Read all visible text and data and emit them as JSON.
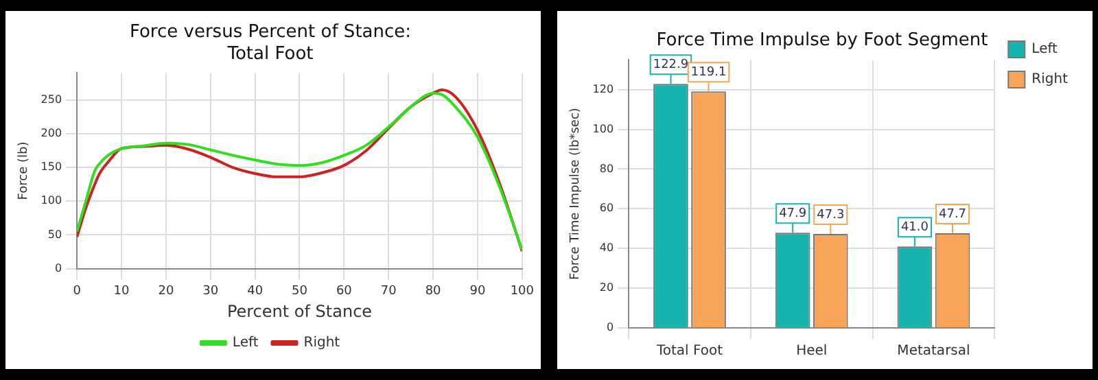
{
  "chart_data": [
    {
      "type": "line",
      "title": [
        "Force versus Percent of Stance:",
        "Total Foot"
      ],
      "xlabel": "Percent of Stance",
      "ylabel": "Force (lb)",
      "xlim": [
        0,
        100
      ],
      "xticks": [
        0,
        10,
        20,
        30,
        40,
        50,
        60,
        70,
        80,
        90,
        100
      ],
      "ylim": [
        0,
        290
      ],
      "yticks": [
        0,
        50,
        100,
        150,
        200,
        250
      ],
      "grid": true,
      "legend": "bottom",
      "marker": "none",
      "line_style": "solid",
      "x": [
        0,
        2,
        4,
        5,
        7,
        10,
        15,
        20,
        25,
        30,
        35,
        40,
        45,
        50,
        55,
        60,
        65,
        70,
        75,
        80,
        82,
        85,
        90,
        95,
        100
      ],
      "series": [
        {
          "name": "Left",
          "color": "#33dd22",
          "values": [
            55,
            100,
            145,
            155,
            168,
            178,
            182,
            186,
            184,
            176,
            168,
            161,
            155,
            153,
            157,
            168,
            183,
            210,
            240,
            260,
            258,
            240,
            195,
            120,
            28
          ]
        },
        {
          "name": "Right",
          "color": "#cc2222",
          "values": [
            47,
            90,
            125,
            140,
            158,
            178,
            181,
            183,
            177,
            165,
            150,
            141,
            136,
            136,
            142,
            153,
            175,
            208,
            240,
            260,
            265,
            255,
            205,
            125,
            26
          ]
        }
      ]
    },
    {
      "type": "bar",
      "title": "Force Time Impulse by Foot Segment",
      "ylabel": "Force Time Impulse (lb*sec)",
      "categories": [
        "Total Foot",
        "Heel",
        "Metatarsal"
      ],
      "ylim": [
        0,
        135
      ],
      "yticks": [
        0,
        20,
        40,
        60,
        80,
        100,
        120
      ],
      "grid": true,
      "legend": "top right",
      "series": [
        {
          "name": "Left",
          "color": "#17b3ad",
          "values": [
            122.9,
            47.9,
            41.0
          ],
          "value_labels": [
            "122.9",
            "47.9",
            "41.0"
          ]
        },
        {
          "name": "Right",
          "color": "#f8a458",
          "values": [
            119.1,
            47.3,
            47.7
          ],
          "value_labels": [
            "119.1",
            "47.3",
            "47.7"
          ]
        }
      ]
    }
  ]
}
